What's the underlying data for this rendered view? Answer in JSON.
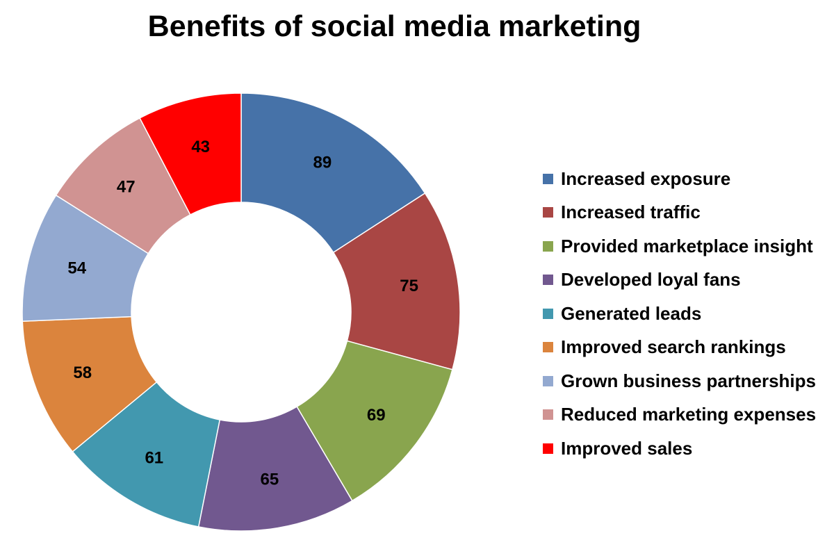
{
  "chart_data": {
    "type": "pie",
    "variant": "donut",
    "title": "Benefits of social media marketing",
    "legend_position": "right",
    "categories": [
      "Increased exposure",
      "Increased traffic",
      "Provided marketplace insight",
      "Developed loyal fans",
      "Generated leads",
      "Improved search rankings",
      "Grown business partnerships",
      "Reduced marketing expenses",
      "Improved sales"
    ],
    "values": [
      89,
      75,
      69,
      65,
      61,
      58,
      54,
      47,
      43
    ],
    "colors": [
      "#4672A8",
      "#A94644",
      "#89A54E",
      "#71588F",
      "#4298AF",
      "#DB843D",
      "#93A9D0",
      "#D09392",
      "#FF0000"
    ],
    "data_labels": [
      "89",
      "75",
      "69",
      "65",
      "61",
      "58",
      "54",
      "47",
      "43"
    ]
  }
}
